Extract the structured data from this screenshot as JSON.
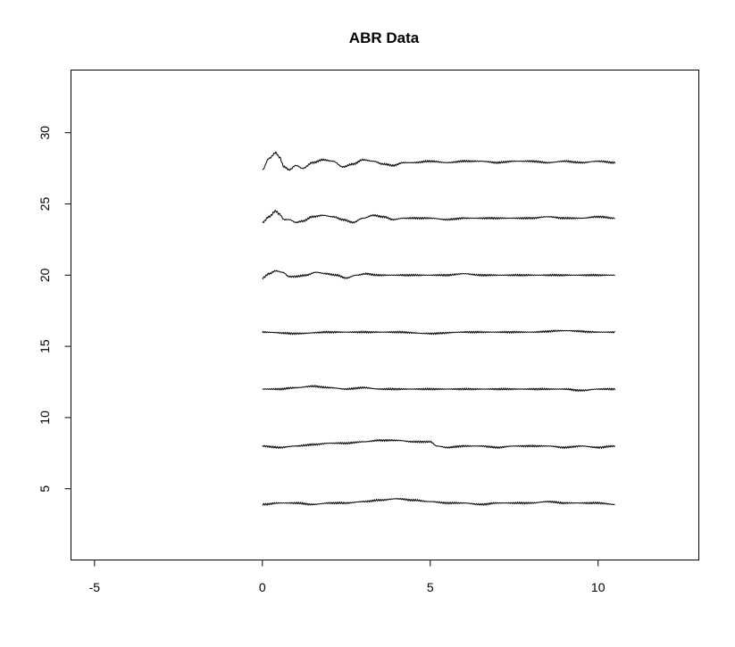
{
  "chart_data": {
    "type": "line",
    "title": "ABR Data",
    "xlabel": "",
    "ylabel": "",
    "xlim": [
      -5.7,
      13.0
    ],
    "ylim": [
      0,
      34.4
    ],
    "x_ticks": [
      -5,
      0,
      5,
      10
    ],
    "y_ticks": [
      5,
      10,
      15,
      20,
      25,
      30
    ],
    "grid": false,
    "legend": "none",
    "series": [
      {
        "offset": 28,
        "x": [
          0,
          0.2,
          0.4,
          0.5,
          0.65,
          0.8,
          1.0,
          1.2,
          1.5,
          1.8,
          2.1,
          2.4,
          2.7,
          3.0,
          3.3,
          3.6,
          3.9,
          4.2,
          4.5,
          5,
          5.5,
          6,
          6.5,
          7,
          7.5,
          8,
          8.5,
          9,
          9.5,
          10,
          10.5
        ],
        "y": [
          27.4,
          28.2,
          28.6,
          28.3,
          27.6,
          27.4,
          27.7,
          27.5,
          27.9,
          28.1,
          28.0,
          27.6,
          27.8,
          28.1,
          28.0,
          27.8,
          27.7,
          27.9,
          27.9,
          28.0,
          27.9,
          28.0,
          28.0,
          27.9,
          28.0,
          28.0,
          27.9,
          28.0,
          27.9,
          28.0,
          27.9
        ]
      },
      {
        "offset": 24,
        "x": [
          0,
          0.2,
          0.4,
          0.5,
          0.65,
          0.8,
          1.0,
          1.2,
          1.5,
          1.8,
          2.1,
          2.4,
          2.7,
          3.0,
          3.3,
          3.6,
          3.9,
          4.2,
          4.5,
          5,
          5.5,
          6,
          6.5,
          7,
          7.5,
          8,
          8.5,
          9,
          9.5,
          10,
          10.5
        ],
        "y": [
          23.7,
          24.1,
          24.5,
          24.3,
          23.9,
          23.9,
          23.7,
          23.8,
          24.1,
          24.2,
          24.1,
          23.9,
          23.7,
          24.0,
          24.2,
          24.1,
          23.9,
          24.0,
          24.0,
          24.0,
          23.9,
          24.0,
          24.0,
          24.0,
          24.0,
          24.0,
          24.1,
          24.0,
          24.0,
          24.1,
          24.0
        ]
      },
      {
        "offset": 20,
        "x": [
          0,
          0.2,
          0.4,
          0.6,
          0.8,
          1.0,
          1.3,
          1.6,
          1.9,
          2.2,
          2.5,
          2.8,
          3.1,
          3.4,
          3.7,
          4,
          4.5,
          5,
          5.5,
          6,
          6.5,
          7,
          7.5,
          8,
          8.5,
          9,
          9.5,
          10,
          10.5
        ],
        "y": [
          19.8,
          20.1,
          20.3,
          20.2,
          19.9,
          19.9,
          20.0,
          20.2,
          20.1,
          20.0,
          19.8,
          20.0,
          20.1,
          20.0,
          20.0,
          20.0,
          20.0,
          20.0,
          20.0,
          20.1,
          20.0,
          20.0,
          20.0,
          20.0,
          20.0,
          20.0,
          20.0,
          20.0,
          20.0
        ]
      },
      {
        "offset": 16,
        "x": [
          0,
          1,
          2,
          3,
          4,
          5,
          6,
          7,
          8,
          9,
          10,
          10.5
        ],
        "y": [
          16.0,
          15.9,
          16.0,
          16.0,
          16.0,
          15.9,
          16.0,
          16.0,
          16.0,
          16.1,
          16.0,
          16.0
        ]
      },
      {
        "offset": 12,
        "x": [
          0,
          0.5,
          1,
          1.5,
          2,
          2.5,
          3,
          3.5,
          4,
          4.5,
          5,
          5.5,
          6,
          6.5,
          7,
          7.5,
          8,
          8.5,
          9,
          9.5,
          10,
          10.5
        ],
        "y": [
          12.0,
          12.0,
          12.1,
          12.2,
          12.1,
          12.0,
          12.1,
          12.0,
          12.0,
          12.0,
          12.0,
          12.0,
          12.0,
          12.0,
          12.0,
          12.0,
          12.0,
          12.0,
          12.0,
          11.9,
          12.0,
          12.0
        ]
      },
      {
        "offset": 8,
        "x": [
          0,
          0.5,
          1,
          1.5,
          2,
          2.5,
          3,
          3.5,
          4,
          4.5,
          5,
          5.2,
          5.5,
          6,
          6.5,
          7,
          7.5,
          8,
          8.5,
          9,
          9.5,
          10,
          10.5
        ],
        "y": [
          8.0,
          7.9,
          8.0,
          8.1,
          8.2,
          8.2,
          8.3,
          8.4,
          8.4,
          8.3,
          8.3,
          8.0,
          7.9,
          8.0,
          8.0,
          7.9,
          8.0,
          8.0,
          8.0,
          7.9,
          8.0,
          7.9,
          8.0
        ]
      },
      {
        "offset": 4,
        "x": [
          0,
          0.5,
          1,
          1.5,
          2,
          2.5,
          3,
          3.5,
          4,
          4.5,
          5,
          5.5,
          6,
          6.5,
          7,
          7.5,
          8,
          8.5,
          9,
          9.5,
          10,
          10.5
        ],
        "y": [
          3.9,
          4.0,
          4.0,
          3.9,
          4.0,
          4.0,
          4.1,
          4.2,
          4.3,
          4.2,
          4.1,
          4.0,
          4.0,
          3.9,
          4.0,
          4.0,
          4.0,
          4.1,
          4.0,
          4.0,
          4.0,
          3.9
        ]
      }
    ]
  }
}
